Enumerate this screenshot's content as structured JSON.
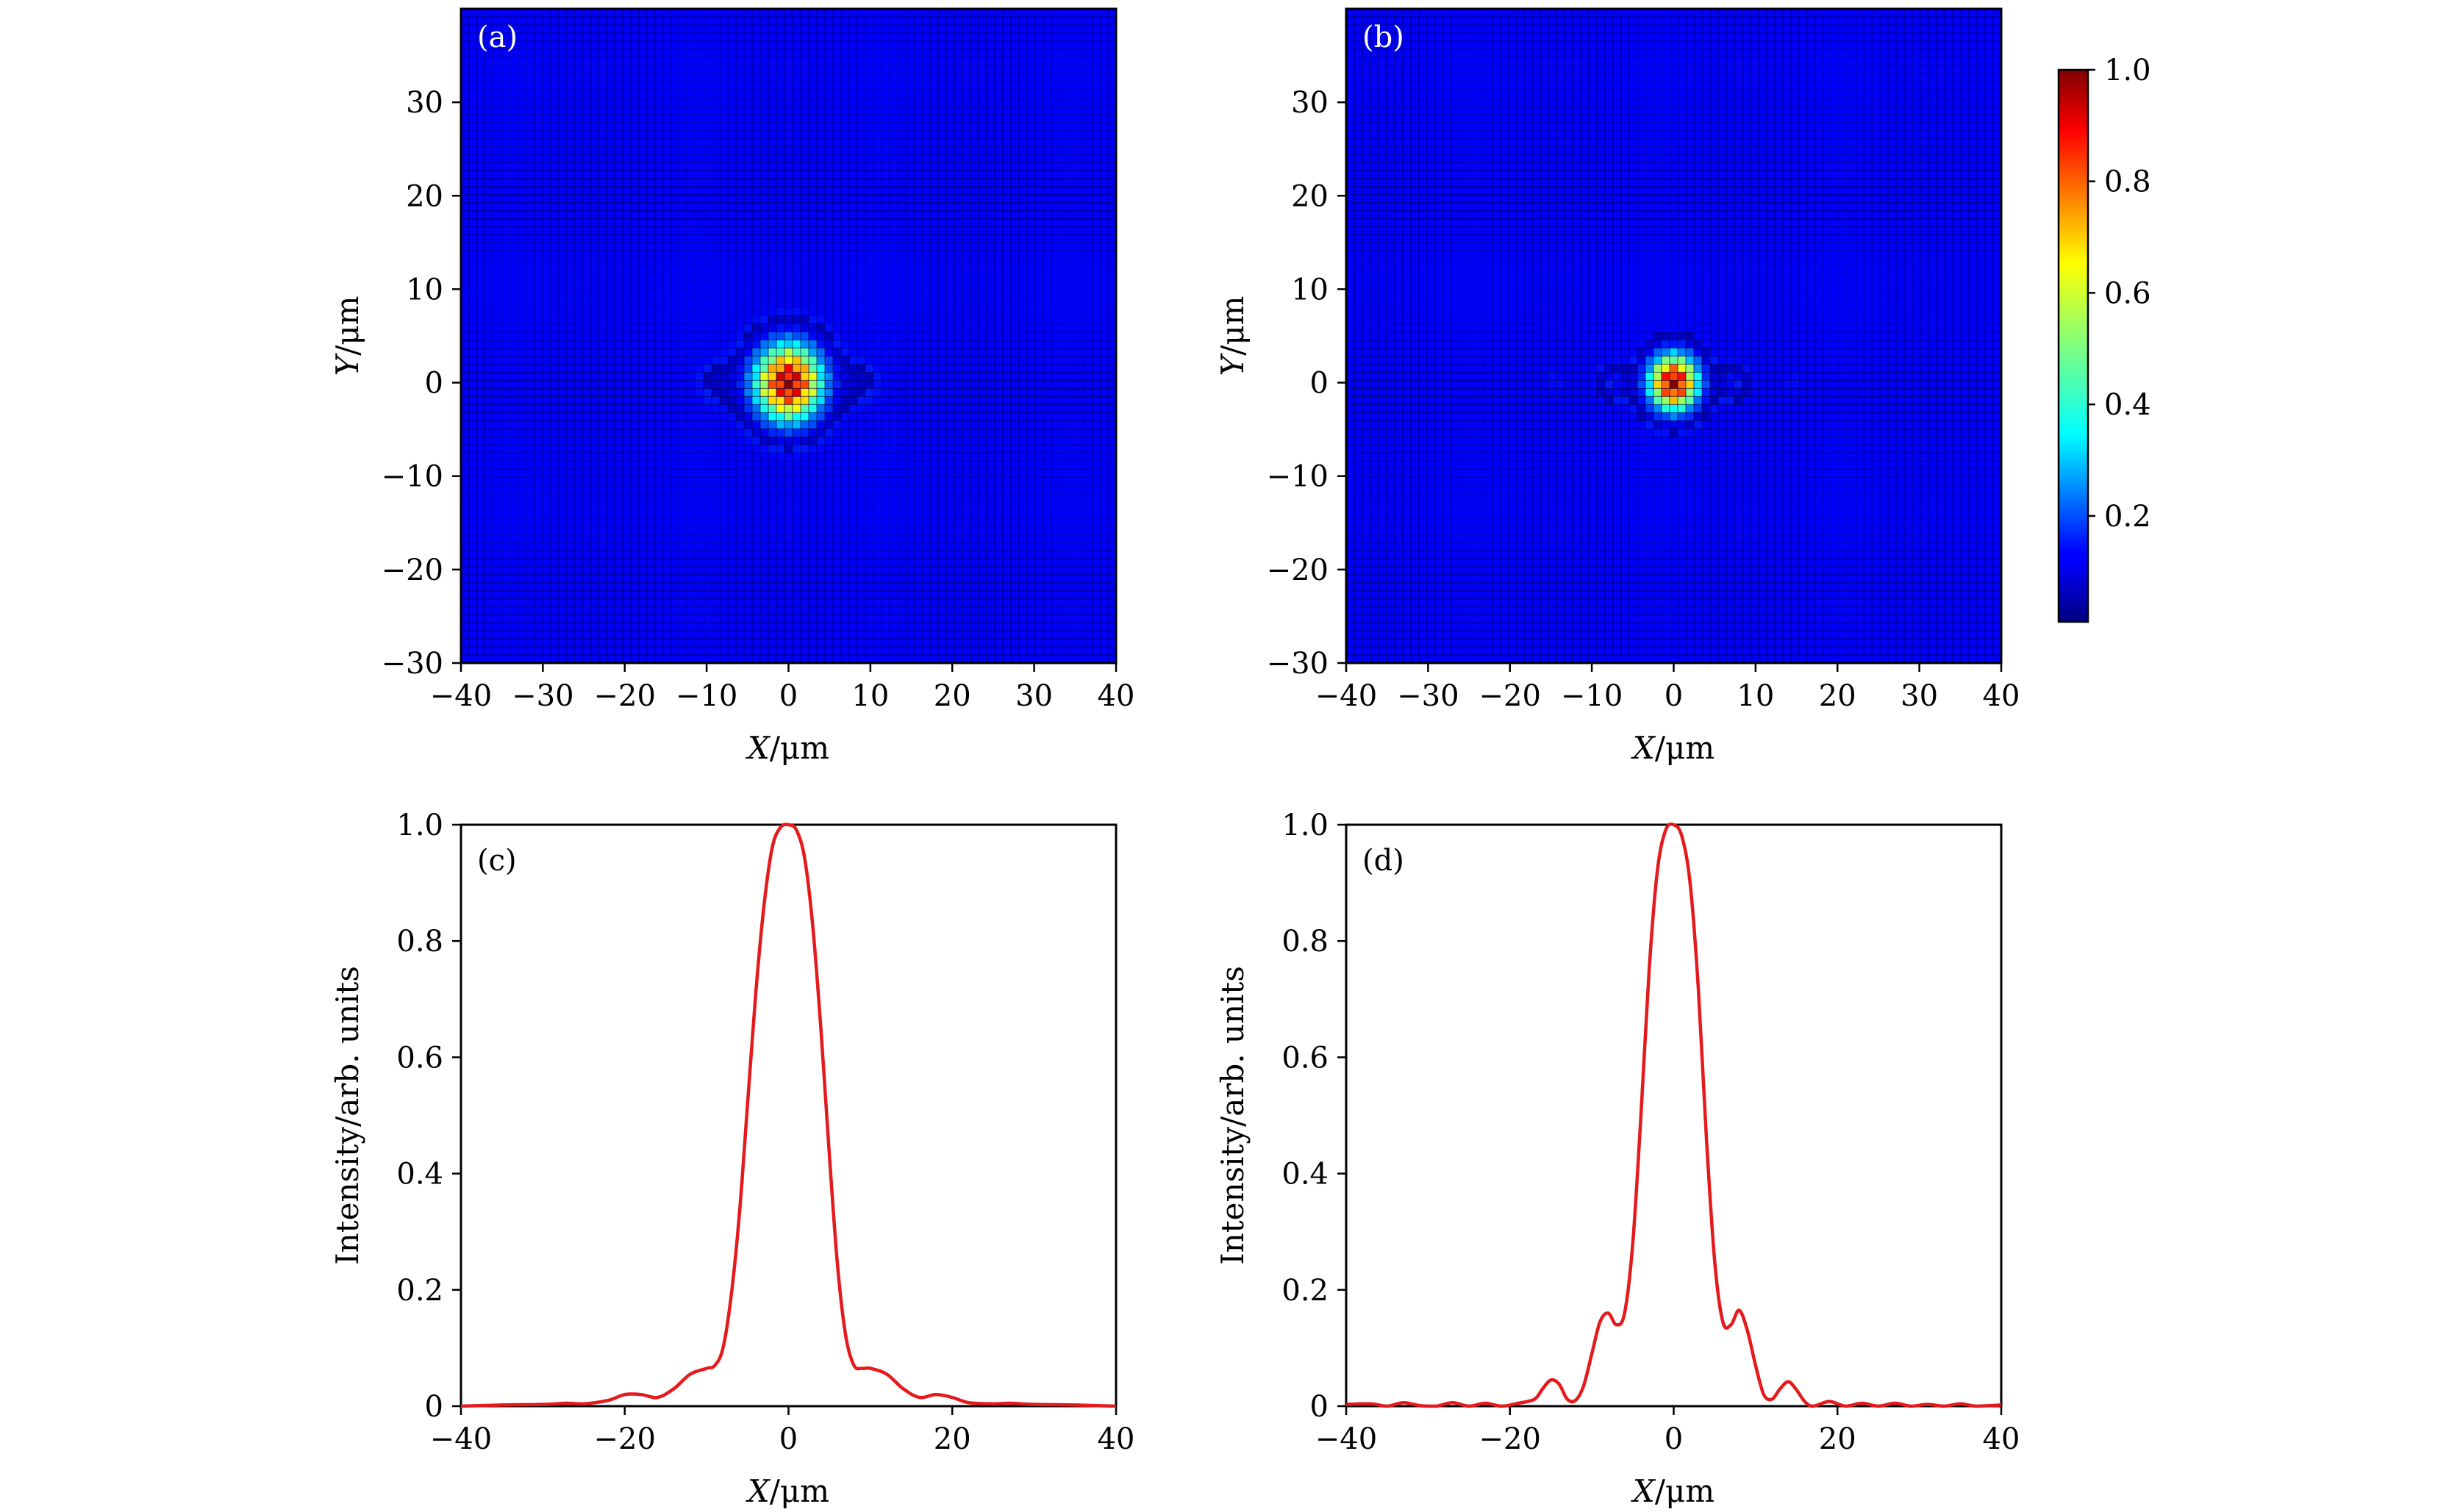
{
  "chart_data": [
    {
      "type": "heatmap",
      "panel_label": "(a)",
      "xlabel_var": "X",
      "xlabel_unit": "/μm",
      "ylabel_var": "Y",
      "ylabel_unit": "/μm",
      "xlim": [
        -40,
        40
      ],
      "ylim": [
        -30,
        40
      ],
      "xticks": [
        -40,
        -30,
        -20,
        -10,
        0,
        10,
        20,
        30,
        40
      ],
      "yticks": [
        -30,
        -20,
        -10,
        0,
        10,
        20,
        30
      ],
      "xtick_labels": [
        "−40",
        "−30",
        "−20",
        "−10",
        "0",
        "10",
        "20",
        "30",
        "40"
      ],
      "ytick_labels": [
        "−30",
        "−20",
        "−10",
        "0",
        "10",
        "20",
        "30"
      ],
      "grid_cells": 81,
      "field": {
        "center": [
          0,
          0
        ],
        "peak": 1.0,
        "core_halfwidth_um": 3.0,
        "side_lobes_x_um": [
          -9,
          9,
          -18,
          18
        ],
        "side_lobe_levels": [
          0.07,
          0.07,
          0.02,
          0.02
        ],
        "side_lobe_width_um": 1.9,
        "background": 0.02
      }
    },
    {
      "type": "heatmap",
      "panel_label": "(b)",
      "xlabel_var": "X",
      "xlabel_unit": "/μm",
      "ylabel_var": "Y",
      "ylabel_unit": "/μm",
      "xlim": [
        -40,
        40
      ],
      "ylim": [
        -30,
        40
      ],
      "xticks": [
        -40,
        -30,
        -20,
        -10,
        0,
        10,
        20,
        30,
        40
      ],
      "yticks": [
        -30,
        -20,
        -10,
        0,
        10,
        20,
        30
      ],
      "xtick_labels": [
        "−40",
        "−30",
        "−20",
        "−10",
        "0",
        "10",
        "20",
        "30",
        "40"
      ],
      "ytick_labels": [
        "−30",
        "−20",
        "−10",
        "0",
        "10",
        "20",
        "30"
      ],
      "grid_cells": 81,
      "field": {
        "center": [
          0,
          0
        ],
        "peak": 1.0,
        "core_halfwidth_um": 2.2,
        "side_lobes_x_um": [
          -7.5,
          7.5,
          -14.5,
          14.5
        ],
        "side_lobe_levels": [
          0.16,
          0.16,
          0.04,
          0.04
        ],
        "side_lobe_width_um": 1.3,
        "background": 0.02
      },
      "colorbar": {
        "colormap": "jet",
        "range": [
          0.01,
          1.0
        ],
        "ticks": [
          0.2,
          0.4,
          0.6,
          0.8,
          1.0
        ],
        "tick_labels": [
          "0.2",
          "0.4",
          "0.6",
          "0.8",
          "1.0"
        ]
      }
    },
    {
      "type": "line",
      "panel_label": "(c)",
      "xlabel_var": "X",
      "xlabel_unit": "/μm",
      "ylabel": "Intensity/arb. units",
      "xlim": [
        -40,
        40
      ],
      "ylim": [
        0,
        1.0
      ],
      "xticks": [
        -40,
        -20,
        0,
        20,
        40
      ],
      "xtick_labels": [
        "−40",
        "−20",
        "0",
        "20",
        "40"
      ],
      "yticks": [
        0,
        0.2,
        0.4,
        0.6,
        0.8,
        1.0
      ],
      "ytick_labels": [
        "0",
        "0.2",
        "0.4",
        "0.6",
        "0.8",
        "1.0"
      ],
      "line_color": "#e41a1c",
      "series": [
        {
          "x": [
            -40,
            -35,
            -30,
            -27,
            -25,
            -22,
            -20,
            -18,
            -16,
            -14,
            -12,
            -10,
            -9,
            -8,
            -7,
            -6,
            -5,
            -4,
            -3,
            -2,
            -1,
            0,
            1,
            2,
            3,
            4,
            5,
            6,
            7,
            8,
            9,
            10,
            12,
            14,
            16,
            18,
            20,
            22,
            25,
            27,
            30,
            35,
            40
          ],
          "values": [
            0.0,
            0.002,
            0.003,
            0.005,
            0.004,
            0.01,
            0.02,
            0.02,
            0.015,
            0.03,
            0.055,
            0.065,
            0.07,
            0.1,
            0.19,
            0.33,
            0.52,
            0.71,
            0.86,
            0.96,
            0.995,
            1.0,
            0.99,
            0.94,
            0.82,
            0.64,
            0.43,
            0.24,
            0.12,
            0.07,
            0.065,
            0.065,
            0.055,
            0.03,
            0.015,
            0.02,
            0.015,
            0.006,
            0.004,
            0.005,
            0.003,
            0.002,
            0.0
          ]
        }
      ]
    },
    {
      "type": "line",
      "panel_label": "(d)",
      "xlabel_var": "X",
      "xlabel_unit": "/μm",
      "ylabel": "Intensity/arb. units",
      "xlim": [
        -40,
        40
      ],
      "ylim": [
        0,
        1.0
      ],
      "xticks": [
        -40,
        -20,
        0,
        20,
        40
      ],
      "xtick_labels": [
        "−40",
        "−20",
        "0",
        "20",
        "40"
      ],
      "yticks": [
        0,
        0.2,
        0.4,
        0.6,
        0.8,
        1.0
      ],
      "ytick_labels": [
        "0",
        "0.2",
        "0.4",
        "0.6",
        "0.8",
        "1.0"
      ],
      "line_color": "#e41a1c",
      "series": [
        {
          "x": [
            -40,
            -37,
            -35,
            -33,
            -31,
            -29,
            -27,
            -25,
            -23,
            -21,
            -19,
            -17,
            -16,
            -15,
            -14,
            -13,
            -12,
            -11,
            -10,
            -9,
            -8,
            -7,
            -6,
            -5,
            -4,
            -3,
            -2,
            -1,
            0,
            1,
            2,
            3,
            4,
            5,
            6,
            7,
            8,
            9,
            10,
            11,
            12,
            13,
            14,
            15,
            16,
            17,
            19,
            21,
            23,
            25,
            27,
            29,
            31,
            33,
            35,
            37,
            40
          ],
          "values": [
            0.003,
            0.004,
            0.0,
            0.006,
            0.001,
            0.0,
            0.006,
            0.0,
            0.005,
            0.0,
            0.005,
            0.012,
            0.03,
            0.045,
            0.038,
            0.012,
            0.01,
            0.035,
            0.09,
            0.145,
            0.16,
            0.14,
            0.16,
            0.28,
            0.5,
            0.75,
            0.92,
            0.99,
            1.0,
            0.98,
            0.9,
            0.72,
            0.46,
            0.25,
            0.145,
            0.14,
            0.165,
            0.13,
            0.07,
            0.02,
            0.012,
            0.03,
            0.042,
            0.028,
            0.008,
            0.0,
            0.008,
            0.0,
            0.005,
            0.0,
            0.005,
            0.0,
            0.003,
            0.0,
            0.004,
            0.0,
            0.002
          ]
        }
      ]
    }
  ]
}
